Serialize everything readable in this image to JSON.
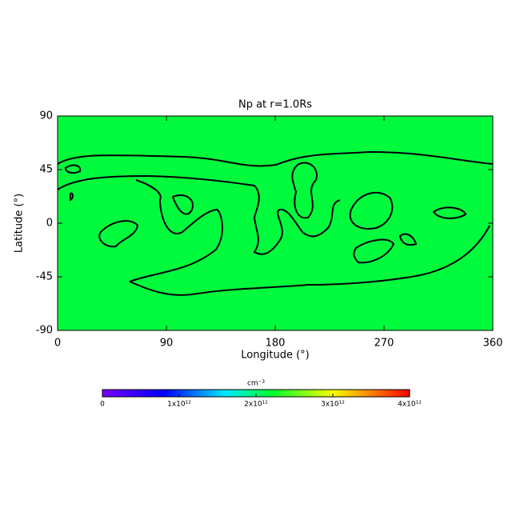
{
  "chart_data": {
    "type": "map",
    "title": "Np at r=1.0Rs",
    "xlabel": "Longitude (°)",
    "ylabel": "Latitude (°)",
    "xlim": [
      0,
      360
    ],
    "xticks": [
      0,
      90,
      180,
      270,
      360
    ],
    "ylim": [
      -90,
      90
    ],
    "yticks": [
      -90,
      -45,
      0,
      45,
      90
    ],
    "color": "#00fa3c",
    "colorbar": {
      "label": "cm⁻³",
      "lim": [
        0,
        4000000000000
      ],
      "ticks": [
        0,
        {
          "value": 1000000000000,
          "label": "1x10¹²"
        },
        {
          "value": 2000000000000,
          "label": "2x10¹²"
        },
        {
          "value": 3000000000000,
          "label": "3x10¹²"
        },
        {
          "value": 4000000000000,
          "label": "4x10¹²"
        }
      ]
    }
  }
}
